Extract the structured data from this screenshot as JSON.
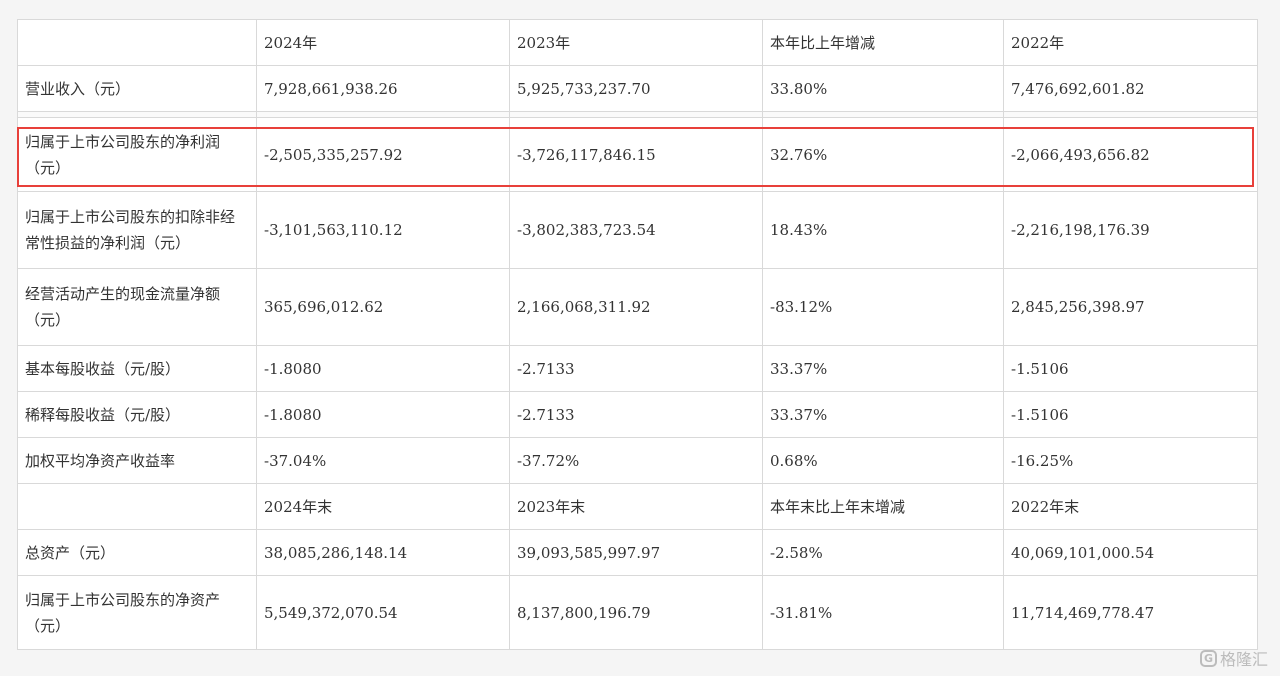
{
  "headers": [
    "",
    "2024年",
    "2023年",
    "本年比上年增减",
    "2022年"
  ],
  "rows_top": [
    {
      "label": "营业收入（元）",
      "v2024": "7,928,661,938.26",
      "v2023": "5,925,733,237.70",
      "change": "33.80%",
      "v2022": "7,476,692,601.82"
    },
    {
      "label": "归属于上市公司股东的净利润（元）",
      "v2024": "-2,505,335,257.92",
      "v2023": "-3,726,117,846.15",
      "change": "32.76%",
      "v2022": "-2,066,493,656.82"
    },
    {
      "label": "归属于上市公司股东的扣除非经常性损益的净利润（元）",
      "v2024": "-3,101,563,110.12",
      "v2023": "-3,802,383,723.54",
      "change": "18.43%",
      "v2022": "-2,216,198,176.39"
    },
    {
      "label": "经营活动产生的现金流量净额（元）",
      "v2024": "365,696,012.62",
      "v2023": "2,166,068,311.92",
      "change": "-83.12%",
      "v2022": "2,845,256,398.97"
    },
    {
      "label": "基本每股收益（元/股）",
      "v2024": "-1.8080",
      "v2023": "-2.7133",
      "change": "33.37%",
      "v2022": "-1.5106"
    },
    {
      "label": "稀释每股收益（元/股）",
      "v2024": "-1.8080",
      "v2023": "-2.7133",
      "change": "33.37%",
      "v2022": "-1.5106"
    },
    {
      "label": "加权平均净资产收益率",
      "v2024": "-37.04%",
      "v2023": "-37.72%",
      "change": "0.68%",
      "v2022": "-16.25%"
    }
  ],
  "headers_end": [
    "",
    "2024年末",
    "2023年末",
    "本年末比上年末增减",
    "2022年末"
  ],
  "rows_bottom": [
    {
      "label": "总资产（元）",
      "v2024": "38,085,286,148.14",
      "v2023": "39,093,585,997.97",
      "change": "-2.58%",
      "v2022": "40,069,101,000.54"
    },
    {
      "label": "归属于上市公司股东的净资产（元）",
      "v2024": "5,549,372,070.54",
      "v2023": "8,137,800,196.79",
      "change": "-31.81%",
      "v2022": "11,714,469,778.47"
    }
  ],
  "watermark": {
    "logo": "G",
    "text": "格隆汇"
  },
  "colors": {
    "highlight": "#e8403a",
    "border": "#d9d9d9",
    "background": "#f5f5f5"
  }
}
